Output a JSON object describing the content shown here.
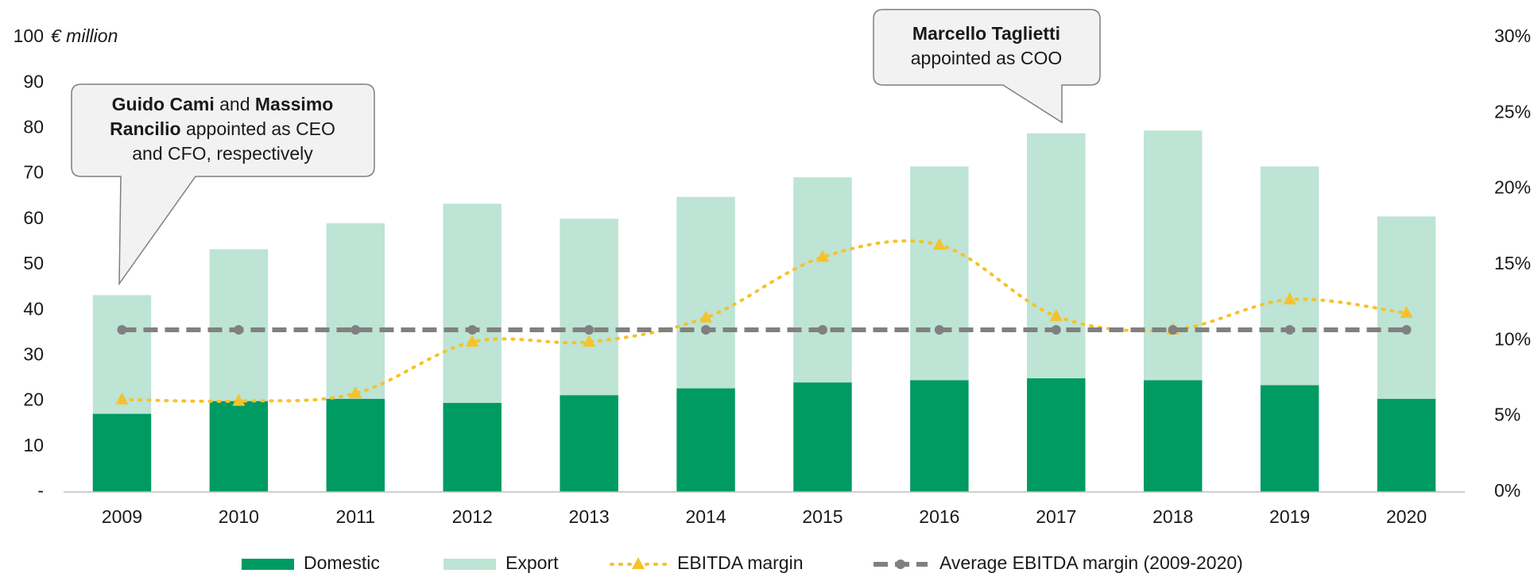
{
  "chart_data": {
    "type": "bar",
    "y_label": "€ million",
    "categories": [
      "2009",
      "2010",
      "2011",
      "2012",
      "2013",
      "2014",
      "2015",
      "2016",
      "2017",
      "2018",
      "2019",
      "2020"
    ],
    "series": [
      {
        "name": "Domestic",
        "type": "bar",
        "color": "#009a63",
        "values": [
          17.2,
          20.0,
          20.5,
          19.6,
          21.3,
          22.8,
          24.1,
          24.6,
          25.0,
          24.6,
          23.5,
          20.5
        ]
      },
      {
        "name": "Export",
        "type": "bar",
        "color": "#bde4d4",
        "values": [
          26.1,
          33.4,
          38.6,
          43.8,
          38.8,
          42.1,
          45.1,
          47.0,
          53.9,
          54.9,
          48.1,
          40.1
        ]
      },
      {
        "name": "EBITDA margin",
        "type": "line",
        "axis": "y2",
        "style": "dotted",
        "color": "#f6c22b",
        "values": [
          6.1,
          6.0,
          6.5,
          9.9,
          9.9,
          11.5,
          15.5,
          16.3,
          11.6,
          10.7,
          12.7,
          11.8
        ]
      },
      {
        "name": "Average EBITDA margin (2009-2020)",
        "type": "line",
        "axis": "y2",
        "style": "dashed",
        "color": "#808080",
        "values": [
          10.7,
          10.7,
          10.7,
          10.7,
          10.7,
          10.7,
          10.7,
          10.7,
          10.7,
          10.7,
          10.7,
          10.7
        ]
      }
    ],
    "stacked": true,
    "ylim": [
      0,
      100
    ],
    "yticks": [
      {
        "value": 0,
        "label": "-"
      },
      10,
      20,
      30,
      40,
      50,
      60,
      70,
      80,
      90,
      100
    ],
    "y2lim": [
      0,
      30
    ],
    "y2ticks": [
      {
        "value": 0,
        "label": "0%"
      },
      {
        "value": 5,
        "label": "5%"
      },
      {
        "value": 10,
        "label": "10%"
      },
      {
        "value": 15,
        "label": "15%"
      },
      {
        "value": 20,
        "label": "20%"
      },
      {
        "value": 25,
        "label": "25%"
      },
      {
        "value": 30,
        "label": "30%"
      }
    ],
    "grid": false,
    "legend": "bottom",
    "annotations": [
      {
        "lines": [
          [
            {
              "text": "Guido Cami",
              "bold": true
            },
            {
              "text": " and ",
              "bold": false
            },
            {
              "text": "Massimo",
              "bold": true
            }
          ],
          [
            {
              "text": "Rancilio",
              "bold": true
            },
            {
              "text": " appointed as CEO",
              "bold": false
            }
          ],
          [
            {
              "text": "and CFO, respectively",
              "bold": false
            }
          ]
        ]
      },
      {
        "lines": [
          [
            {
              "text": "Marcello Taglietti",
              "bold": true
            }
          ],
          [
            {
              "text": "appointed as COO",
              "bold": false
            }
          ]
        ]
      }
    ]
  }
}
